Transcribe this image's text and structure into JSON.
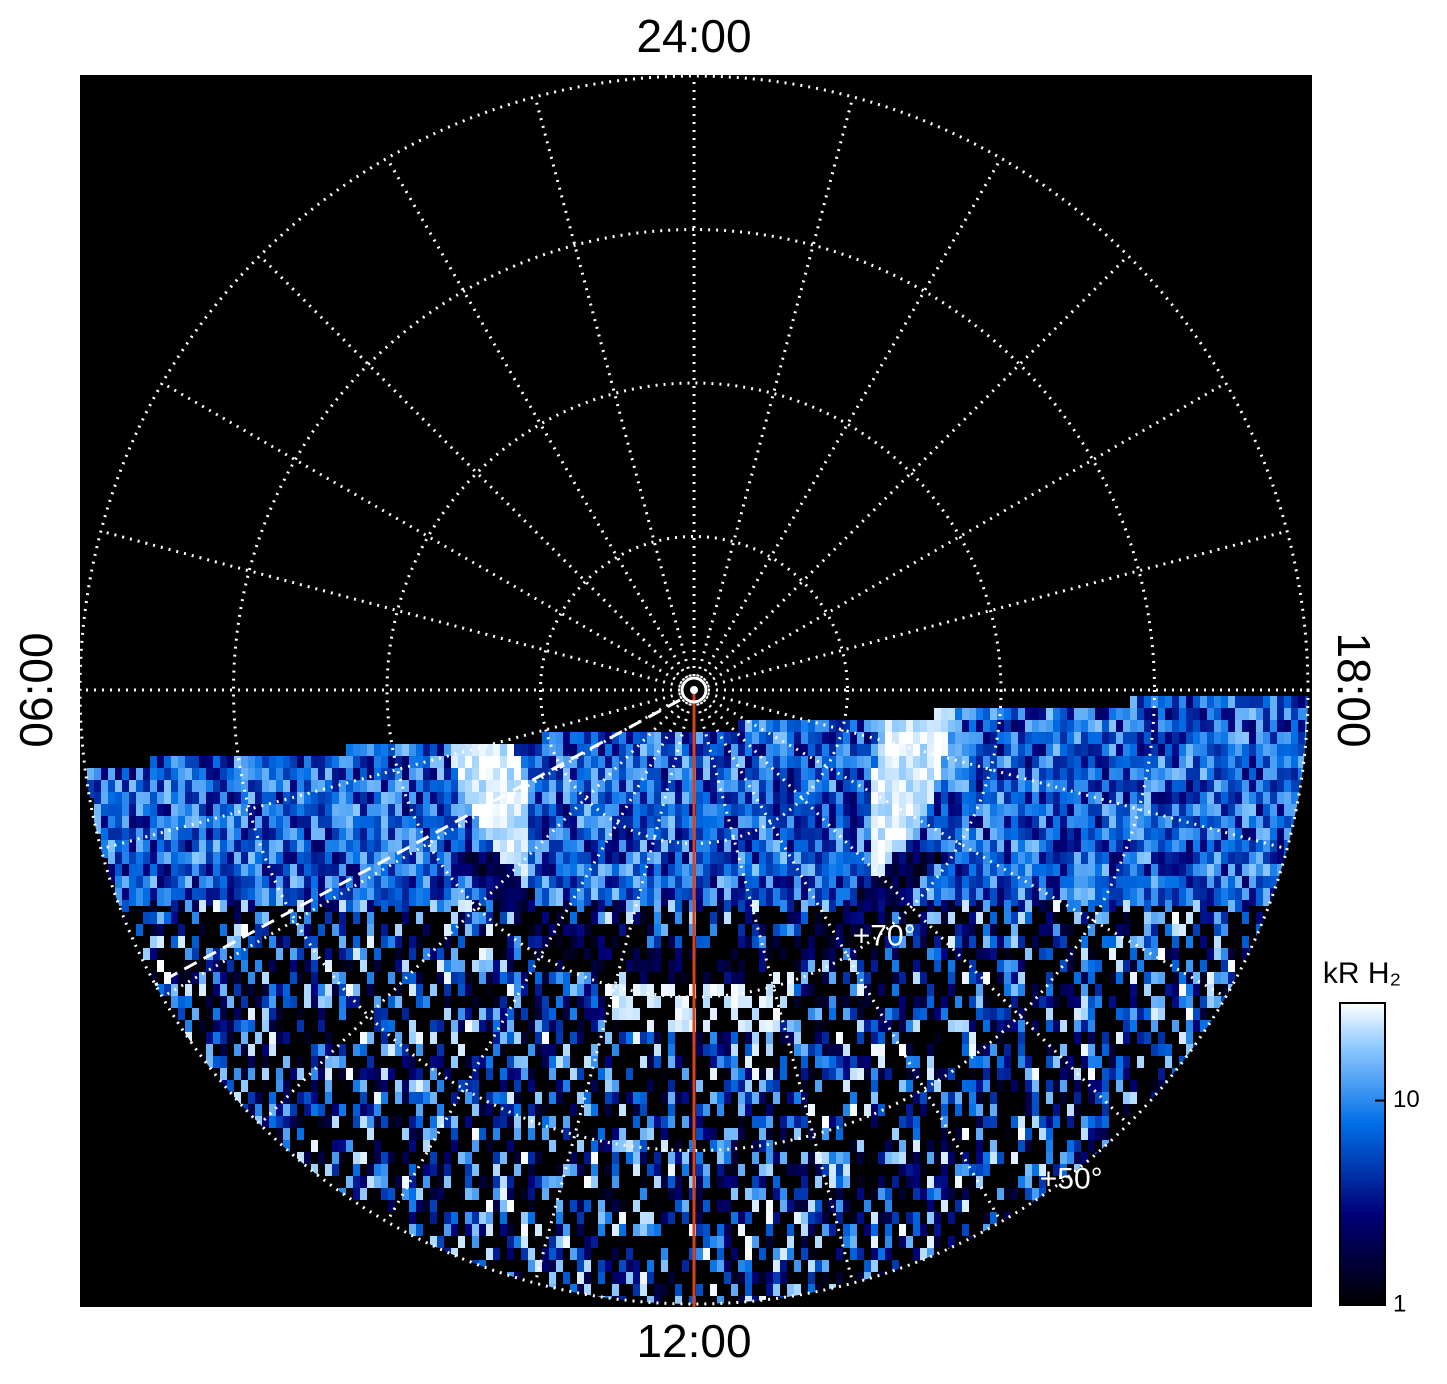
{
  "chart_data": {
    "type": "polar-image",
    "hour_labels": {
      "top": "24:00",
      "left": "06:00",
      "bottom": "12:00",
      "right": "18:00"
    },
    "lat_rings": [
      80,
      70,
      60,
      50
    ],
    "lat_labels": [
      {
        "value": 70,
        "label": "+70°"
      },
      {
        "value": 50,
        "label": "+50°"
      }
    ],
    "colorbar": {
      "title": "kR H₂",
      "log": true,
      "clim": [
        1,
        30
      ],
      "ticks": [
        1,
        10
      ]
    }
  }
}
